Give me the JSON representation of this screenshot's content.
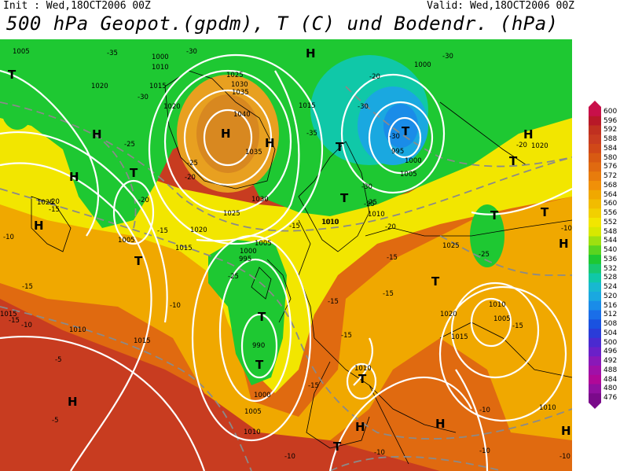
{
  "header": {
    "init": "Init : Wed,18OCT2006 00Z",
    "valid": "Valid: Wed,18OCT2006 00Z",
    "title": "500 hPa Geopot.(gpdm), T (C) und Bodendr. (hPa)"
  },
  "colors": {
    "geopot_cold": "#1aa8e0",
    "geopot_green": "#1ec832",
    "geopot_yellow": "#f2e600",
    "geopot_orange": "#f0a800",
    "geopot_warm": "#e06a10",
    "geopot_hot": "#c83c20",
    "isobar": "#ffffff",
    "isotherm": "#8a8a8a",
    "coastline": "#000000"
  },
  "map": {
    "pressure_labels": [
      "1005",
      "1000",
      "1010",
      "1015",
      "1020",
      "1025",
      "1030",
      "1035",
      "1040",
      "1035",
      "1030",
      "1025",
      "1020",
      "1010",
      "1005",
      "1000",
      "995",
      "990",
      "1000",
      "1005",
      "1010",
      "1015",
      "1010",
      "1015",
      "1020",
      "1025",
      "1000",
      "995",
      "1000",
      "1005",
      "1015",
      "1020",
      "1025",
      "1010",
      "1010",
      "1015",
      "1010",
      "1005",
      "1010",
      "1015",
      "1020",
      "1005",
      "1010"
    ],
    "temperature_labels": [
      "-35",
      "-30",
      "-30",
      "-25",
      "-20",
      "-15",
      "-25",
      "-20",
      "-35",
      "-30",
      "-30",
      "-25",
      "-20",
      "-15",
      "-10",
      "-15",
      "-10",
      "-15",
      "-20",
      "-25",
      "-25",
      "-30",
      "-10",
      "-5",
      "-5",
      "-15",
      "-10",
      "-10",
      "-15",
      "-15",
      "-15",
      "-15",
      "-10",
      "-10",
      "-10",
      "-15",
      "-20",
      "-30",
      "-25",
      "-20",
      "-15",
      "-10"
    ],
    "high_markers": [
      "H",
      "H",
      "H",
      "H",
      "H",
      "H",
      "H",
      "H",
      "H",
      "H",
      "H",
      "H"
    ],
    "low_markers": [
      "T",
      "T",
      "T",
      "T",
      "T",
      "T",
      "T",
      "T",
      "T",
      "T",
      "T",
      "T",
      "T",
      "T"
    ]
  },
  "legend": {
    "levels": [
      "600",
      "596",
      "592",
      "588",
      "584",
      "580",
      "576",
      "572",
      "568",
      "564",
      "560",
      "556",
      "552",
      "548",
      "544",
      "540",
      "536",
      "532",
      "528",
      "524",
      "520",
      "516",
      "512",
      "508",
      "504",
      "500",
      "496",
      "492",
      "488",
      "484",
      "480",
      "476"
    ],
    "colors": [
      "#c8104a",
      "#b81828",
      "#c03020",
      "#c83c20",
      "#d04818",
      "#d85a12",
      "#e06a10",
      "#e87c0c",
      "#f09008",
      "#f0a800",
      "#f2bc00",
      "#f2d000",
      "#f2e600",
      "#d8e800",
      "#9ee010",
      "#5ad420",
      "#1ec832",
      "#18c870",
      "#10c8a8",
      "#18b8d0",
      "#1aa8e0",
      "#1a8ce8",
      "#1a6ee8",
      "#1a52e0",
      "#2a3cd8",
      "#4a2ad0",
      "#6a20c8",
      "#8a18b8",
      "#a010a8",
      "#b00898",
      "#9010a0",
      "#7a0a8a"
    ]
  }
}
